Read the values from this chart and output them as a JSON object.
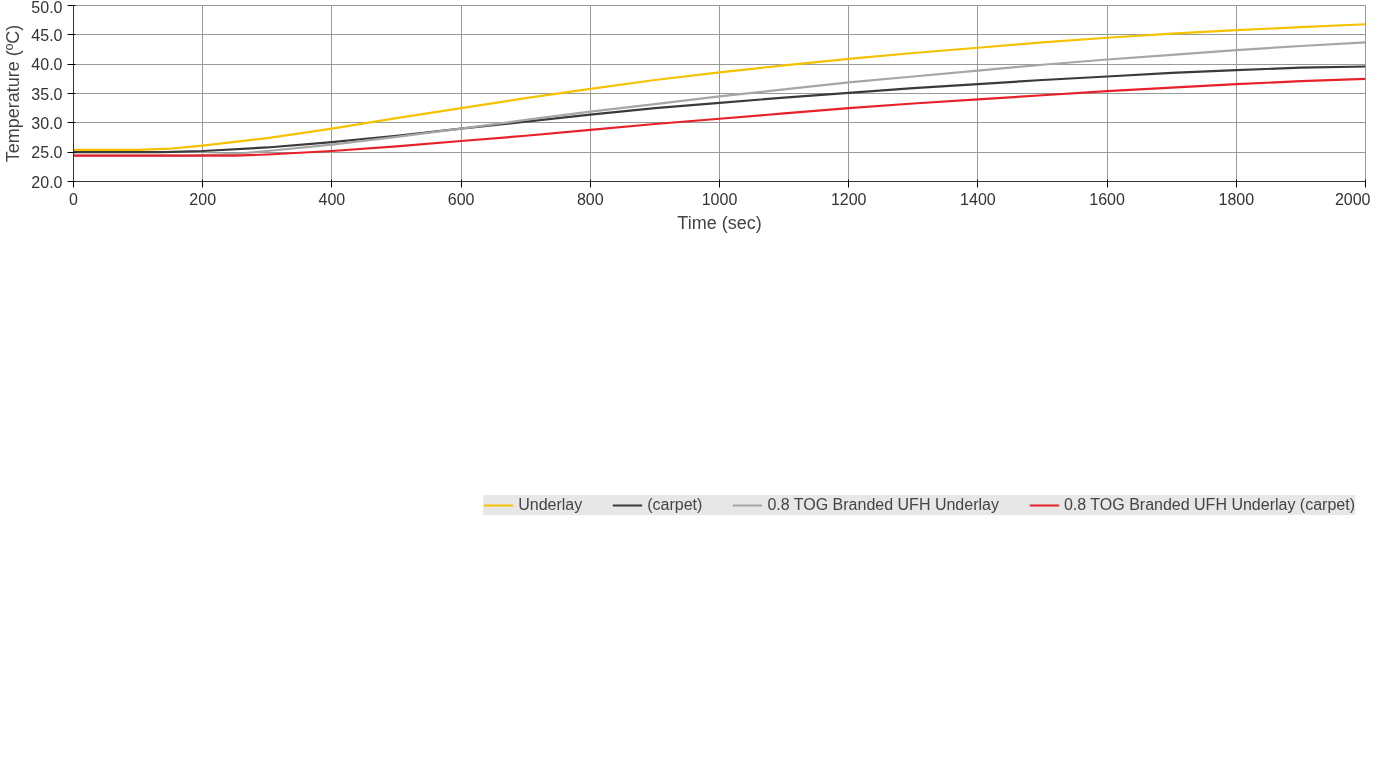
{
  "chart_data": {
    "type": "line",
    "xlabel": "Time (sec)",
    "ylabel": "Temperature (ºC)",
    "xlim": [
      0,
      2000
    ],
    "ylim": [
      20,
      50
    ],
    "xticks": [
      0,
      200,
      400,
      600,
      800,
      1000,
      1200,
      1400,
      1600,
      1800,
      2000
    ],
    "yticks": [
      {
        "value": 20,
        "label": "20.0"
      },
      {
        "value": 25,
        "label": "25.0"
      },
      {
        "value": 30,
        "label": "30.0"
      },
      {
        "value": 35,
        "label": "35.0"
      },
      {
        "value": 40,
        "label": "40.0"
      },
      {
        "value": 45,
        "label": "45.0"
      },
      {
        "value": 50,
        "label": "50.0"
      }
    ],
    "grid": true,
    "legend": "bottom",
    "marker": "none",
    "line_style": "solid",
    "series": [
      {
        "name": "Underlay",
        "color": "#f5c200",
        "x": [
          0,
          100,
          150,
          200,
          300,
          400,
          500,
          600,
          700,
          800,
          900,
          1000,
          1100,
          1200,
          1300,
          1400,
          1500,
          1600,
          1700,
          1800,
          1900,
          2000
        ],
        "values": [
          25.4,
          25.4,
          25.6,
          26.1,
          27.4,
          29.0,
          30.8,
          32.5,
          34.2,
          35.8,
          37.3,
          38.6,
          39.8,
          40.9,
          41.9,
          42.8,
          43.7,
          44.5,
          45.2,
          45.8,
          46.3,
          46.8
        ]
      },
      {
        "name": "(carpet)",
        "color": "#3a3a3a",
        "x": [
          0,
          140,
          200,
          300,
          400,
          500,
          600,
          700,
          800,
          900,
          1000,
          1100,
          1200,
          1300,
          1400,
          1500,
          1600,
          1700,
          1800,
          1900,
          2000
        ],
        "values": [
          25.0,
          25.0,
          25.2,
          25.8,
          26.7,
          27.8,
          29.0,
          30.2,
          31.4,
          32.5,
          33.4,
          34.3,
          35.1,
          35.9,
          36.6,
          37.3,
          37.9,
          38.5,
          39.0,
          39.4,
          39.6
        ]
      },
      {
        "name": "0.8 TOG Branded UFH Underlay",
        "color": "#a6a6a6",
        "x": [
          0,
          180,
          250,
          300,
          400,
          500,
          600,
          700,
          800,
          900,
          1000,
          1100,
          1200,
          1300,
          1400,
          1500,
          1600,
          1700,
          1800,
          1900,
          2000
        ],
        "values": [
          24.4,
          24.4,
          24.7,
          25.2,
          26.3,
          27.6,
          29.0,
          30.5,
          31.9,
          33.2,
          34.5,
          35.7,
          36.9,
          37.9,
          38.9,
          39.9,
          40.8,
          41.6,
          42.4,
          43.1,
          43.7
        ]
      },
      {
        "name": "0.8 TOG Branded UFH Underlay (carpet)",
        "color": "#e8202a",
        "x": [
          0,
          250,
          300,
          400,
          500,
          600,
          700,
          800,
          900,
          1000,
          1100,
          1200,
          1300,
          1400,
          1500,
          1600,
          1700,
          1800,
          1900,
          2000
        ],
        "values": [
          24.4,
          24.4,
          24.6,
          25.2,
          26.0,
          26.9,
          27.8,
          28.8,
          29.8,
          30.7,
          31.6,
          32.5,
          33.3,
          34.0,
          34.7,
          35.4,
          36.0,
          36.6,
          37.1,
          37.5
        ]
      }
    ]
  }
}
